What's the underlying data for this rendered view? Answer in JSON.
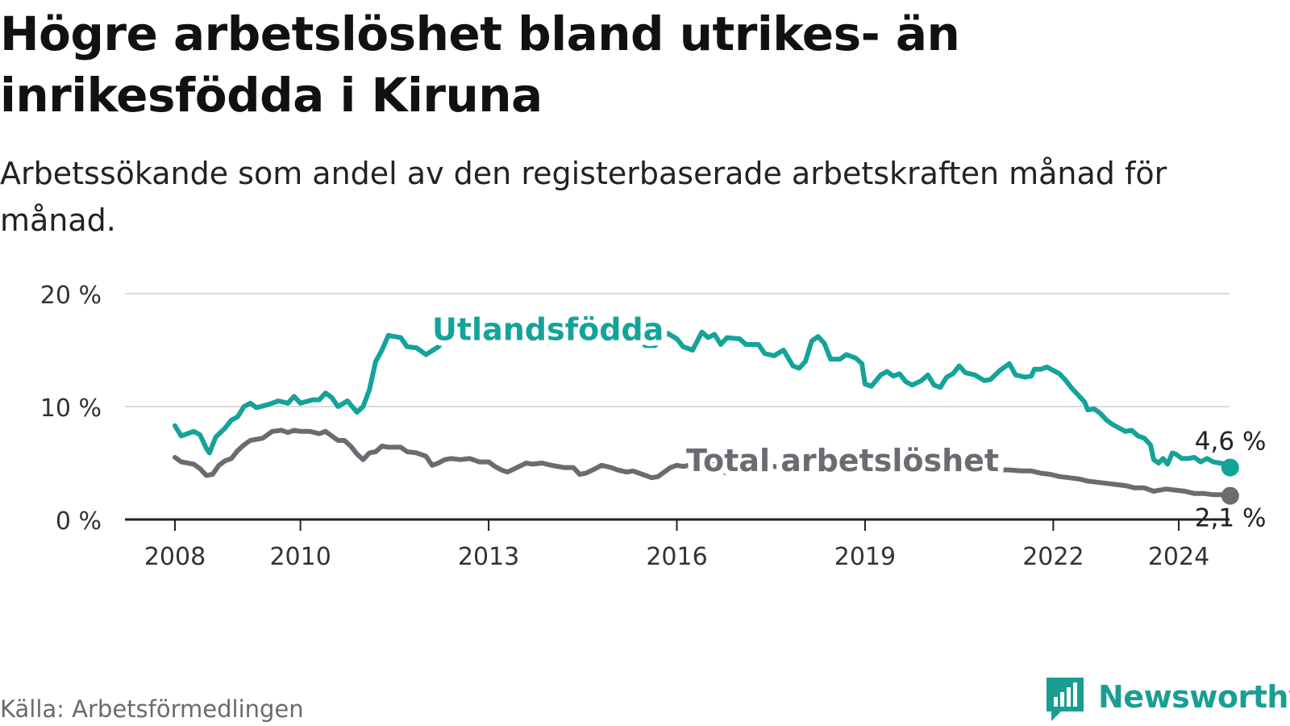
{
  "title": "Högre arbetslöshet bland utrikes- än inrikesfödda i Kiruna",
  "subtitle": "Arbetssökande som andel av den registerbaserade arbetskraften månad för månad.",
  "source": "Källa: Arbetsförmedlingen",
  "brand": {
    "name": "Newsworthy",
    "color": "#1a9e93"
  },
  "chart_data": {
    "type": "line",
    "ylim": [
      0,
      20
    ],
    "xlim": [
      2008,
      2024.85
    ],
    "yticks": [
      {
        "value": 0,
        "label": "0 %"
      },
      {
        "value": 10,
        "label": "10 %"
      },
      {
        "value": 20,
        "label": "20 %"
      }
    ],
    "xticks": [
      {
        "value": 2008,
        "label": "2008"
      },
      {
        "value": 2010,
        "label": "2010"
      },
      {
        "value": 2013,
        "label": "2013"
      },
      {
        "value": 2016,
        "label": "2016"
      },
      {
        "value": 2019,
        "label": "2019"
      },
      {
        "value": 2022,
        "label": "2022"
      },
      {
        "value": 2024,
        "label": "2024"
      }
    ],
    "grid": true,
    "series": [
      {
        "name": "Utlandsfödda",
        "color": "#14a399",
        "end_label": "4,6 %",
        "points": [
          [
            2008.0,
            8.3
          ],
          [
            2008.1,
            7.4
          ],
          [
            2008.2,
            7.6
          ],
          [
            2008.3,
            7.8
          ],
          [
            2008.4,
            7.5
          ],
          [
            2008.5,
            6.3
          ],
          [
            2008.55,
            5.9
          ],
          [
            2008.65,
            7.3
          ],
          [
            2008.8,
            8.1
          ],
          [
            2008.9,
            8.8
          ],
          [
            2009.0,
            9.1
          ],
          [
            2009.1,
            10.0
          ],
          [
            2009.2,
            10.3
          ],
          [
            2009.3,
            9.9
          ],
          [
            2009.5,
            10.2
          ],
          [
            2009.65,
            10.5
          ],
          [
            2009.8,
            10.3
          ],
          [
            2009.9,
            10.9
          ],
          [
            2010.0,
            10.3
          ],
          [
            2010.2,
            10.6
          ],
          [
            2010.3,
            10.6
          ],
          [
            2010.4,
            11.2
          ],
          [
            2010.5,
            10.8
          ],
          [
            2010.6,
            10.0
          ],
          [
            2010.75,
            10.5
          ],
          [
            2010.9,
            9.5
          ],
          [
            2011.0,
            10.0
          ],
          [
            2011.1,
            11.5
          ],
          [
            2011.2,
            14.0
          ],
          [
            2011.3,
            15.0
          ],
          [
            2011.4,
            16.3
          ],
          [
            2011.6,
            16.1
          ],
          [
            2011.7,
            15.3
          ],
          [
            2011.85,
            15.2
          ],
          [
            2012.0,
            14.6
          ],
          [
            2012.2,
            15.3
          ],
          [
            2012.35,
            16.3
          ],
          [
            2012.5,
            16.8
          ],
          [
            2012.65,
            16.7
          ],
          [
            2012.8,
            17.2
          ],
          [
            2013.0,
            17.0
          ],
          [
            2013.2,
            16.8
          ],
          [
            2013.35,
            16.2
          ],
          [
            2013.5,
            16.6
          ],
          [
            2013.65,
            16.5
          ],
          [
            2013.8,
            15.8
          ],
          [
            2014.0,
            15.6
          ],
          [
            2014.2,
            15.9
          ],
          [
            2014.3,
            16.2
          ],
          [
            2014.5,
            16.1
          ],
          [
            2014.65,
            16.0
          ],
          [
            2014.8,
            16.4
          ],
          [
            2015.0,
            16.5
          ],
          [
            2015.2,
            16.3
          ],
          [
            2015.35,
            16.1
          ],
          [
            2015.5,
            15.4
          ],
          [
            2015.65,
            15.4
          ],
          [
            2015.75,
            15.8
          ],
          [
            2015.85,
            16.5
          ],
          [
            2016.0,
            16.0
          ],
          [
            2016.1,
            15.3
          ],
          [
            2016.25,
            15.0
          ],
          [
            2016.4,
            16.6
          ],
          [
            2016.5,
            16.1
          ],
          [
            2016.6,
            16.4
          ],
          [
            2016.7,
            15.5
          ],
          [
            2016.8,
            16.1
          ],
          [
            2017.0,
            16.0
          ],
          [
            2017.1,
            15.5
          ],
          [
            2017.3,
            15.5
          ],
          [
            2017.4,
            14.7
          ],
          [
            2017.55,
            14.5
          ],
          [
            2017.7,
            15.0
          ],
          [
            2017.85,
            13.6
          ],
          [
            2017.95,
            13.4
          ],
          [
            2018.05,
            14.0
          ],
          [
            2018.15,
            15.8
          ],
          [
            2018.25,
            16.2
          ],
          [
            2018.35,
            15.6
          ],
          [
            2018.45,
            14.2
          ],
          [
            2018.6,
            14.2
          ],
          [
            2018.7,
            14.6
          ],
          [
            2018.85,
            14.3
          ],
          [
            2018.95,
            13.8
          ],
          [
            2019.0,
            12.0
          ],
          [
            2019.1,
            11.8
          ],
          [
            2019.25,
            12.8
          ],
          [
            2019.35,
            13.1
          ],
          [
            2019.45,
            12.7
          ],
          [
            2019.55,
            12.9
          ],
          [
            2019.65,
            12.2
          ],
          [
            2019.75,
            11.9
          ],
          [
            2019.9,
            12.3
          ],
          [
            2020.0,
            12.8
          ],
          [
            2020.1,
            11.9
          ],
          [
            2020.2,
            11.7
          ],
          [
            2020.3,
            12.6
          ],
          [
            2020.4,
            12.9
          ],
          [
            2020.5,
            13.6
          ],
          [
            2020.6,
            13.0
          ],
          [
            2020.75,
            12.8
          ],
          [
            2020.9,
            12.3
          ],
          [
            2021.0,
            12.4
          ],
          [
            2021.15,
            13.2
          ],
          [
            2021.3,
            13.8
          ],
          [
            2021.4,
            12.8
          ],
          [
            2021.55,
            12.6
          ],
          [
            2021.65,
            12.7
          ],
          [
            2021.7,
            13.3
          ],
          [
            2021.8,
            13.3
          ],
          [
            2021.9,
            13.5
          ],
          [
            2022.0,
            13.2
          ],
          [
            2022.1,
            12.9
          ],
          [
            2022.2,
            12.3
          ],
          [
            2022.3,
            11.6
          ],
          [
            2022.4,
            11.0
          ],
          [
            2022.5,
            10.4
          ],
          [
            2022.55,
            9.7
          ],
          [
            2022.65,
            9.8
          ],
          [
            2022.75,
            9.4
          ],
          [
            2022.85,
            8.8
          ],
          [
            2022.95,
            8.4
          ],
          [
            2023.05,
            8.1
          ],
          [
            2023.15,
            7.8
          ],
          [
            2023.25,
            7.9
          ],
          [
            2023.35,
            7.4
          ],
          [
            2023.45,
            7.2
          ],
          [
            2023.55,
            6.6
          ],
          [
            2023.6,
            5.3
          ],
          [
            2023.68,
            5.0
          ],
          [
            2023.75,
            5.4
          ],
          [
            2023.82,
            4.9
          ],
          [
            2023.9,
            5.9
          ],
          [
            2023.95,
            5.8
          ],
          [
            2024.05,
            5.4
          ],
          [
            2024.15,
            5.4
          ],
          [
            2024.25,
            5.5
          ],
          [
            2024.35,
            5.1
          ],
          [
            2024.45,
            5.4
          ],
          [
            2024.55,
            5.1
          ],
          [
            2024.65,
            5.0
          ],
          [
            2024.75,
            4.9
          ],
          [
            2024.82,
            4.6
          ]
        ]
      },
      {
        "name": "Total arbetslöshet",
        "color": "#6b6b72",
        "end_label": "2,1 %",
        "points": [
          [
            2008.0,
            5.5
          ],
          [
            2008.1,
            5.1
          ],
          [
            2008.2,
            5.0
          ],
          [
            2008.3,
            4.9
          ],
          [
            2008.4,
            4.5
          ],
          [
            2008.5,
            3.9
          ],
          [
            2008.6,
            4.0
          ],
          [
            2008.7,
            4.8
          ],
          [
            2008.8,
            5.2
          ],
          [
            2008.9,
            5.4
          ],
          [
            2009.0,
            6.1
          ],
          [
            2009.1,
            6.6
          ],
          [
            2009.2,
            7.0
          ],
          [
            2009.3,
            7.1
          ],
          [
            2009.4,
            7.2
          ],
          [
            2009.55,
            7.8
          ],
          [
            2009.7,
            7.9
          ],
          [
            2009.8,
            7.7
          ],
          [
            2009.9,
            7.9
          ],
          [
            2010.0,
            7.8
          ],
          [
            2010.15,
            7.8
          ],
          [
            2010.3,
            7.6
          ],
          [
            2010.4,
            7.8
          ],
          [
            2010.5,
            7.4
          ],
          [
            2010.6,
            7.0
          ],
          [
            2010.7,
            7.0
          ],
          [
            2010.8,
            6.5
          ],
          [
            2010.9,
            5.8
          ],
          [
            2011.0,
            5.3
          ],
          [
            2011.1,
            5.9
          ],
          [
            2011.2,
            6.0
          ],
          [
            2011.3,
            6.5
          ],
          [
            2011.4,
            6.4
          ],
          [
            2011.6,
            6.4
          ],
          [
            2011.7,
            6.0
          ],
          [
            2011.85,
            5.9
          ],
          [
            2012.0,
            5.6
          ],
          [
            2012.1,
            4.8
          ],
          [
            2012.2,
            5.0
          ],
          [
            2012.3,
            5.3
          ],
          [
            2012.4,
            5.4
          ],
          [
            2012.55,
            5.3
          ],
          [
            2012.7,
            5.4
          ],
          [
            2012.85,
            5.1
          ],
          [
            2013.0,
            5.1
          ],
          [
            2013.1,
            4.7
          ],
          [
            2013.2,
            4.4
          ],
          [
            2013.3,
            4.2
          ],
          [
            2013.45,
            4.6
          ],
          [
            2013.6,
            5.0
          ],
          [
            2013.7,
            4.9
          ],
          [
            2013.85,
            5.0
          ],
          [
            2014.0,
            4.8
          ],
          [
            2014.2,
            4.6
          ],
          [
            2014.35,
            4.6
          ],
          [
            2014.45,
            4.0
          ],
          [
            2014.55,
            4.1
          ],
          [
            2014.7,
            4.5
          ],
          [
            2014.8,
            4.8
          ],
          [
            2014.95,
            4.6
          ],
          [
            2015.05,
            4.4
          ],
          [
            2015.2,
            4.2
          ],
          [
            2015.3,
            4.3
          ],
          [
            2015.45,
            4.0
          ],
          [
            2015.6,
            3.7
          ],
          [
            2015.7,
            3.8
          ],
          [
            2015.8,
            4.2
          ],
          [
            2015.9,
            4.6
          ],
          [
            2016.0,
            4.8
          ],
          [
            2016.1,
            4.7
          ],
          [
            2016.2,
            4.8
          ],
          [
            2016.3,
            4.9
          ],
          [
            2016.4,
            4.7
          ],
          [
            2016.5,
            5.0
          ],
          [
            2016.6,
            4.8
          ],
          [
            2016.7,
            4.3
          ],
          [
            2016.8,
            4.1
          ],
          [
            2016.9,
            4.5
          ],
          [
            2017.0,
            4.7
          ],
          [
            2017.1,
            4.8
          ],
          [
            2017.2,
            4.6
          ],
          [
            2017.3,
            4.8
          ],
          [
            2017.4,
            4.7
          ],
          [
            2017.55,
            4.7
          ],
          [
            2017.7,
            4.6
          ],
          [
            2018.0,
            4.6
          ],
          [
            2018.3,
            4.7
          ],
          [
            2018.6,
            4.5
          ],
          [
            2018.9,
            4.4
          ],
          [
            2019.2,
            4.4
          ],
          [
            2019.5,
            4.5
          ],
          [
            2019.8,
            4.5
          ],
          [
            2020.1,
            4.3
          ],
          [
            2020.4,
            4.2
          ],
          [
            2020.7,
            4.3
          ],
          [
            2021.0,
            4.3
          ],
          [
            2021.25,
            4.4
          ],
          [
            2021.5,
            4.3
          ],
          [
            2021.65,
            4.3
          ],
          [
            2021.8,
            4.1
          ],
          [
            2021.95,
            4.0
          ],
          [
            2022.1,
            3.8
          ],
          [
            2022.25,
            3.7
          ],
          [
            2022.4,
            3.6
          ],
          [
            2022.55,
            3.4
          ],
          [
            2022.7,
            3.3
          ],
          [
            2022.85,
            3.2
          ],
          [
            2023.0,
            3.1
          ],
          [
            2023.15,
            3.0
          ],
          [
            2023.3,
            2.8
          ],
          [
            2023.45,
            2.8
          ],
          [
            2023.6,
            2.5
          ],
          [
            2023.7,
            2.6
          ],
          [
            2023.8,
            2.7
          ],
          [
            2023.95,
            2.6
          ],
          [
            2024.1,
            2.5
          ],
          [
            2024.25,
            2.3
          ],
          [
            2024.4,
            2.3
          ],
          [
            2024.55,
            2.2
          ],
          [
            2024.7,
            2.2
          ],
          [
            2024.82,
            2.1
          ]
        ]
      }
    ]
  }
}
